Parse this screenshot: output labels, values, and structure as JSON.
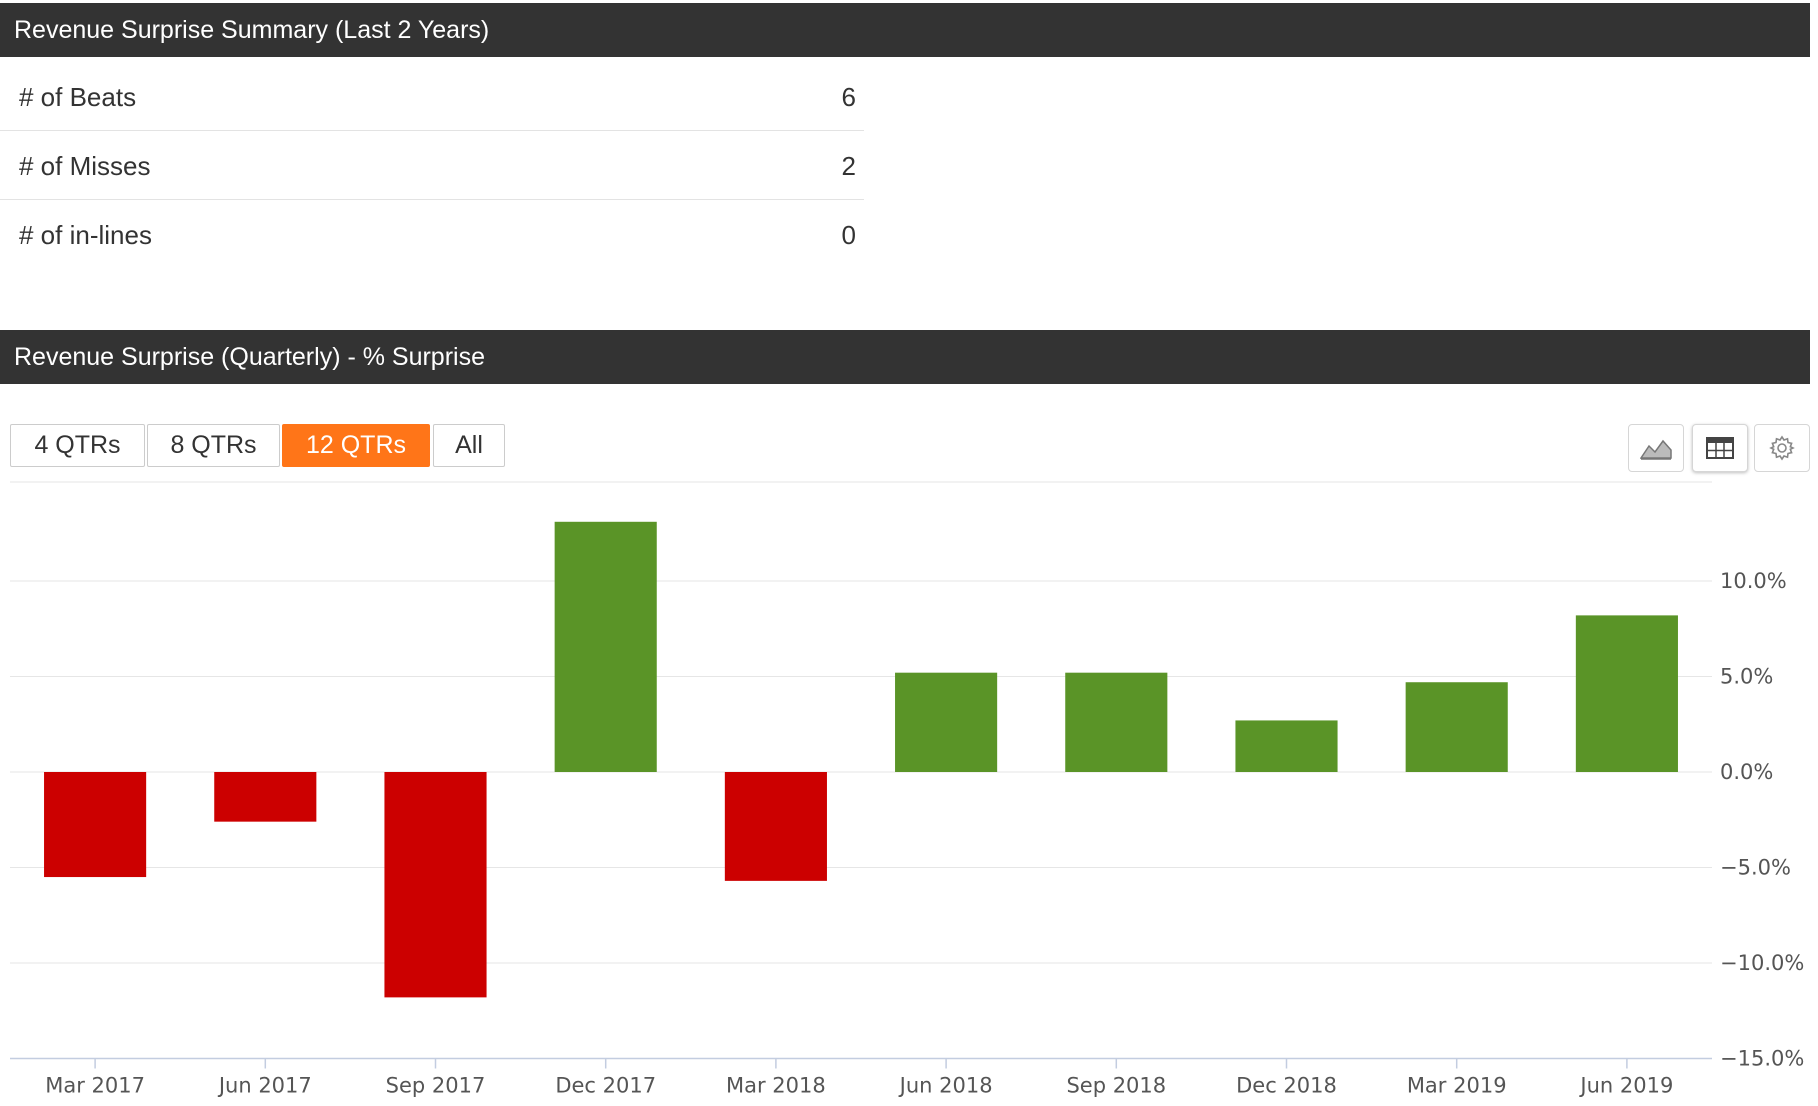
{
  "summary": {
    "title": "Revenue Surprise Summary (Last 2 Years)",
    "rows": [
      {
        "label": "# of Beats",
        "value": "6"
      },
      {
        "label": "# of Misses",
        "value": "2"
      },
      {
        "label": "# of in-lines",
        "value": "0"
      }
    ]
  },
  "chart_panel": {
    "title": "Revenue Surprise (Quarterly) - % Surprise",
    "range_buttons": [
      {
        "label": "4 QTRs",
        "active": false
      },
      {
        "label": "8 QTRs",
        "active": false
      },
      {
        "label": "12 QTRs",
        "active": true
      },
      {
        "label": "All",
        "active": false
      }
    ],
    "tools": [
      {
        "icon": "area-chart-icon",
        "selected": false
      },
      {
        "icon": "table-icon",
        "selected": true
      },
      {
        "icon": "gear-icon",
        "selected": false
      }
    ]
  },
  "colors": {
    "header_bg": "#333333",
    "accent": "#ff7518",
    "positive": "#5a9427",
    "negative": "#cc0000"
  },
  "chart_data": {
    "type": "bar",
    "categories": [
      "Mar 2017",
      "Jun 2017",
      "Sep 2017",
      "Dec 2017",
      "Mar 2018",
      "Jun 2018",
      "Sep 2018",
      "Dec 2018",
      "Mar 2019",
      "Jun 2019"
    ],
    "values": [
      -5.5,
      -2.6,
      -11.8,
      13.1,
      -5.7,
      5.2,
      5.2,
      2.7,
      4.7,
      8.2
    ],
    "title": "",
    "xlabel": "",
    "ylabel": "",
    "ylim": [
      -15,
      15
    ],
    "y_ticks": [
      "−15.0%",
      "−10.0%",
      "−5.0%",
      "0.0%",
      "5.0%",
      "10.0%"
    ],
    "y_tick_values": [
      -15,
      -10,
      -5,
      0,
      5,
      10
    ],
    "y_axis_position": "right",
    "grid": true,
    "legend": "none"
  }
}
